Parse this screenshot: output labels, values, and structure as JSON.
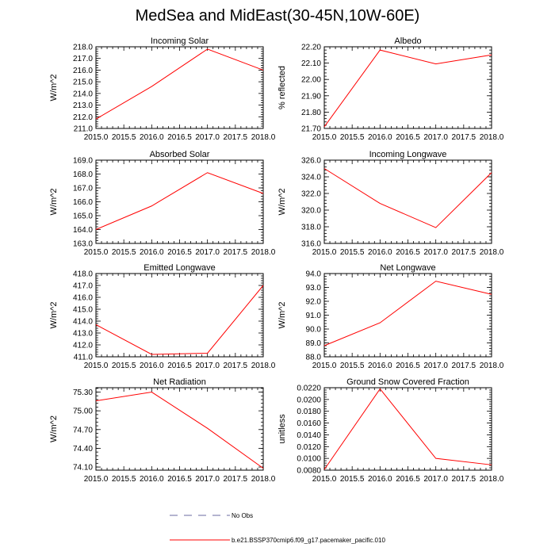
{
  "figure": {
    "title": "MedSea and MidEast(30-45N,10W-60E)",
    "line_color": "#ff0000",
    "legend": [
      {
        "label": "No Obs",
        "style": "dashed",
        "color": "#6a6aa0"
      },
      {
        "label": "b.e21.BSSP370cmip6.f09_g17.pacemaker_pacific.010",
        "style": "solid",
        "color": "#ff0000"
      }
    ]
  },
  "chart_data": [
    {
      "type": "line",
      "title": "Incoming Solar",
      "xlabel": "",
      "ylabel": "W/m^2",
      "x": [
        2015.0,
        2016.0,
        2017.0,
        2018.0
      ],
      "values": [
        211.8,
        214.6,
        217.8,
        216.0
      ],
      "xlim": [
        2015.0,
        2018.0
      ],
      "ylim": [
        211.0,
        218.0
      ],
      "xticks": [
        "2015.0",
        "2015.5",
        "2016.0",
        "2016.5",
        "2017.0",
        "2017.5",
        "2018.0"
      ],
      "yticks": [
        "211.0",
        "212.0",
        "213.0",
        "214.0",
        "215.0",
        "216.0",
        "217.0",
        "218.0"
      ]
    },
    {
      "type": "line",
      "title": "Albedo",
      "xlabel": "",
      "ylabel": "% reflected",
      "x": [
        2015.0,
        2016.0,
        2017.0,
        2018.0
      ],
      "values": [
        21.71,
        22.18,
        22.095,
        22.15
      ],
      "xlim": [
        2015.0,
        2018.0
      ],
      "ylim": [
        21.7,
        22.2
      ],
      "xticks": [
        "2015.0",
        "2015.5",
        "2016.0",
        "2016.5",
        "2017.0",
        "2017.5",
        "2018.0"
      ],
      "yticks": [
        "21.70",
        "21.80",
        "21.90",
        "22.00",
        "22.10",
        "22.20"
      ]
    },
    {
      "type": "line",
      "title": "Absorbed Solar",
      "xlabel": "",
      "ylabel": "W/m^2",
      "x": [
        2015.0,
        2016.0,
        2017.0,
        2018.0
      ],
      "values": [
        164.0,
        165.7,
        168.1,
        166.6
      ],
      "xlim": [
        2015.0,
        2018.0
      ],
      "ylim": [
        163.0,
        169.0
      ],
      "xticks": [
        "2015.0",
        "2015.5",
        "2016.0",
        "2016.5",
        "2017.0",
        "2017.5",
        "2018.0"
      ],
      "yticks": [
        "163.0",
        "164.0",
        "165.0",
        "166.0",
        "167.0",
        "168.0",
        "169.0"
      ]
    },
    {
      "type": "line",
      "title": "Incoming Longwave",
      "xlabel": "",
      "ylabel": "W/m^2",
      "x": [
        2015.0,
        2016.0,
        2017.0,
        2018.0
      ],
      "values": [
        325.0,
        320.8,
        317.9,
        324.5
      ],
      "xlim": [
        2015.0,
        2018.0
      ],
      "ylim": [
        316.0,
        326.0
      ],
      "xticks": [
        "2015.0",
        "2015.5",
        "2016.0",
        "2016.5",
        "2017.0",
        "2017.5",
        "2018.0"
      ],
      "yticks": [
        "316.0",
        "318.0",
        "320.0",
        "322.0",
        "324.0",
        "326.0"
      ]
    },
    {
      "type": "line",
      "title": "Emitted Longwave",
      "xlabel": "",
      "ylabel": "W/m^2",
      "x": [
        2015.0,
        2016.0,
        2017.0,
        2018.0
      ],
      "values": [
        413.7,
        411.2,
        411.3,
        417.0
      ],
      "xlim": [
        2015.0,
        2018.0
      ],
      "ylim": [
        411.0,
        418.0
      ],
      "xticks": [
        "2015.0",
        "2015.5",
        "2016.0",
        "2016.5",
        "2017.0",
        "2017.5",
        "2018.0"
      ],
      "yticks": [
        "411.0",
        "412.0",
        "413.0",
        "414.0",
        "415.0",
        "416.0",
        "417.0",
        "418.0"
      ]
    },
    {
      "type": "line",
      "title": "Net Longwave",
      "xlabel": "",
      "ylabel": "W/m^2",
      "x": [
        2015.0,
        2016.0,
        2017.0,
        2018.0
      ],
      "values": [
        88.8,
        90.45,
        93.45,
        92.5
      ],
      "xlim": [
        2015.0,
        2018.0
      ],
      "ylim": [
        88.0,
        94.0
      ],
      "xticks": [
        "2015.0",
        "2015.5",
        "2016.0",
        "2016.5",
        "2017.0",
        "2017.5",
        "2018.0"
      ],
      "yticks": [
        "88.0",
        "89.0",
        "90.0",
        "91.0",
        "92.0",
        "93.0",
        "94.0"
      ]
    },
    {
      "type": "line",
      "title": "Net Radiation",
      "xlabel": "",
      "ylabel": "W/m^2",
      "x": [
        2015.0,
        2016.0,
        2017.0,
        2018.0
      ],
      "values": [
        75.16,
        75.3,
        74.72,
        74.08
      ],
      "xlim": [
        2015.0,
        2018.0
      ],
      "ylim": [
        74.05,
        75.37
      ],
      "xticks": [
        "2015.0",
        "2015.5",
        "2016.0",
        "2016.5",
        "2017.0",
        "2017.5",
        "2018.0"
      ],
      "yticks": [
        "74.10",
        "74.40",
        "74.70",
        "75.00",
        "75.30"
      ],
      "yticks_values": [
        74.1,
        74.4,
        74.7,
        75.0,
        75.3
      ]
    },
    {
      "type": "line",
      "title": "Ground Snow Covered Fraction",
      "xlabel": "",
      "ylabel": "unitless",
      "x": [
        2015.0,
        2016.0,
        2017.0,
        2018.0
      ],
      "values": [
        0.0081,
        0.0218,
        0.01,
        0.0089
      ],
      "xlim": [
        2015.0,
        2018.0
      ],
      "ylim": [
        0.008,
        0.022
      ],
      "xticks": [
        "2015.0",
        "2015.5",
        "2016.0",
        "2016.5",
        "2017.0",
        "2017.5",
        "2018.0"
      ],
      "yticks": [
        "0.0080",
        "0.0100",
        "0.0120",
        "0.0140",
        "0.0160",
        "0.0180",
        "0.0200",
        "0.0220"
      ]
    }
  ]
}
